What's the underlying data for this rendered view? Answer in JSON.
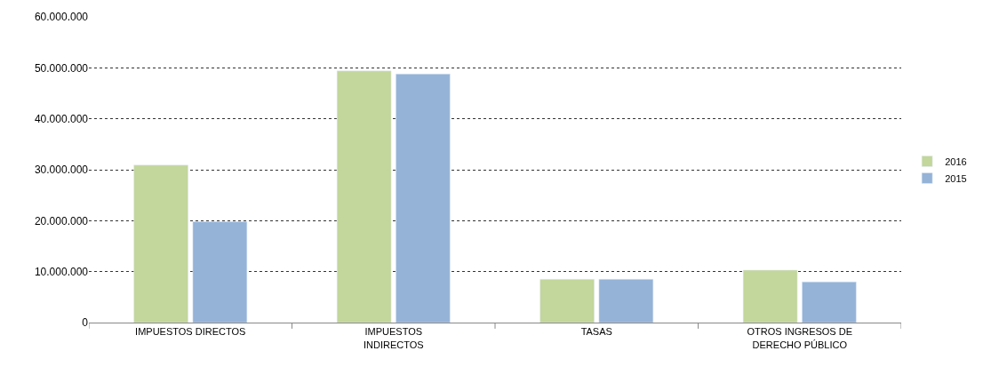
{
  "chart_data": {
    "type": "bar",
    "categories": [
      "IMPUESTOS DIRECTOS",
      "IMPUESTOS INDIRECTOS",
      "TASAS",
      "OTROS INGRESOS DE DERECHO PÚBLICO"
    ],
    "series": [
      {
        "name": "2016",
        "color": "#c3d69b",
        "values": [
          30900000,
          49400000,
          8500000,
          10300000
        ]
      },
      {
        "name": "2015",
        "color": "#95b3d7",
        "values": [
          19800000,
          48800000,
          8500000,
          8000000
        ]
      }
    ],
    "ylim": [
      0,
      60000000
    ],
    "yticks": [
      0,
      {
        "value": 10000000,
        "label": "10.000.000"
      },
      {
        "value": 20000000,
        "label": "20.000.000"
      },
      {
        "value": 30000000,
        "label": "30.000.000"
      },
      {
        "value": 40000000,
        "label": "40.000.000"
      },
      {
        "value": 50000000,
        "label": "50.000.000"
      },
      {
        "value": 60000000,
        "label": "60.000.000"
      }
    ],
    "grid": "y",
    "legend": "right"
  }
}
